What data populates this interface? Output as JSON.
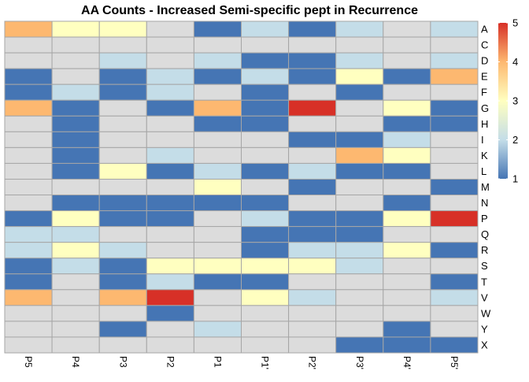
{
  "chart_data": {
    "type": "heatmap",
    "title": "AA Counts - Increased Semi-specific pept in Recurrence",
    "columns": [
      "P5",
      "P4",
      "P3",
      "P2",
      "P1",
      "P1'",
      "P2'",
      "P3'",
      "P4'",
      "P5'"
    ],
    "rows": [
      "A",
      "C",
      "D",
      "E",
      "F",
      "G",
      "H",
      "I",
      "K",
      "L",
      "M",
      "N",
      "P",
      "Q",
      "R",
      "S",
      "T",
      "V",
      "W",
      "Y",
      "X"
    ],
    "values": [
      [
        4,
        3,
        3,
        0,
        1,
        2,
        1,
        2,
        0,
        2
      ],
      [
        0,
        0,
        0,
        0,
        0,
        0,
        0,
        0,
        0,
        0
      ],
      [
        0,
        0,
        2,
        0,
        2,
        1,
        1,
        2,
        0,
        2
      ],
      [
        1,
        0,
        1,
        2,
        1,
        2,
        1,
        3,
        1,
        4
      ],
      [
        1,
        2,
        1,
        2,
        0,
        1,
        0,
        1,
        0,
        0
      ],
      [
        4,
        1,
        0,
        1,
        4,
        1,
        5,
        0,
        3,
        1
      ],
      [
        0,
        1,
        0,
        0,
        1,
        1,
        0,
        0,
        1,
        1
      ],
      [
        0,
        1,
        0,
        0,
        0,
        0,
        1,
        1,
        2,
        0
      ],
      [
        0,
        1,
        0,
        2,
        0,
        0,
        0,
        4,
        3,
        0
      ],
      [
        0,
        1,
        3,
        1,
        2,
        1,
        2,
        1,
        1,
        0
      ],
      [
        0,
        0,
        0,
        0,
        3,
        0,
        1,
        0,
        0,
        1
      ],
      [
        0,
        1,
        1,
        1,
        1,
        1,
        0,
        0,
        1,
        0
      ],
      [
        1,
        3,
        1,
        1,
        0,
        2,
        1,
        1,
        3,
        5
      ],
      [
        2,
        2,
        0,
        0,
        0,
        1,
        1,
        1,
        0,
        0
      ],
      [
        2,
        3,
        2,
        0,
        0,
        1,
        2,
        2,
        3,
        1
      ],
      [
        1,
        2,
        1,
        3,
        3,
        3,
        3,
        2,
        0,
        0
      ],
      [
        1,
        0,
        1,
        2,
        1,
        1,
        0,
        0,
        0,
        1
      ],
      [
        4,
        0,
        4,
        5,
        0,
        3,
        2,
        0,
        0,
        2
      ],
      [
        0,
        0,
        0,
        1,
        0,
        0,
        0,
        0,
        0,
        0
      ],
      [
        0,
        0,
        1,
        0,
        2,
        0,
        0,
        0,
        1,
        0
      ],
      [
        0,
        0,
        0,
        0,
        0,
        0,
        0,
        1,
        1,
        1
      ]
    ],
    "zero_color": "#dcdcdc",
    "color_scale": {
      "min": 1,
      "max": 5,
      "stops": [
        "#4575b4",
        "#c4dde8",
        "#ffffc0",
        "#fdb870",
        "#d73027"
      ]
    },
    "legend": {
      "position": "right",
      "ticks": [
        1,
        2,
        3,
        4,
        5
      ]
    },
    "grid": true
  }
}
